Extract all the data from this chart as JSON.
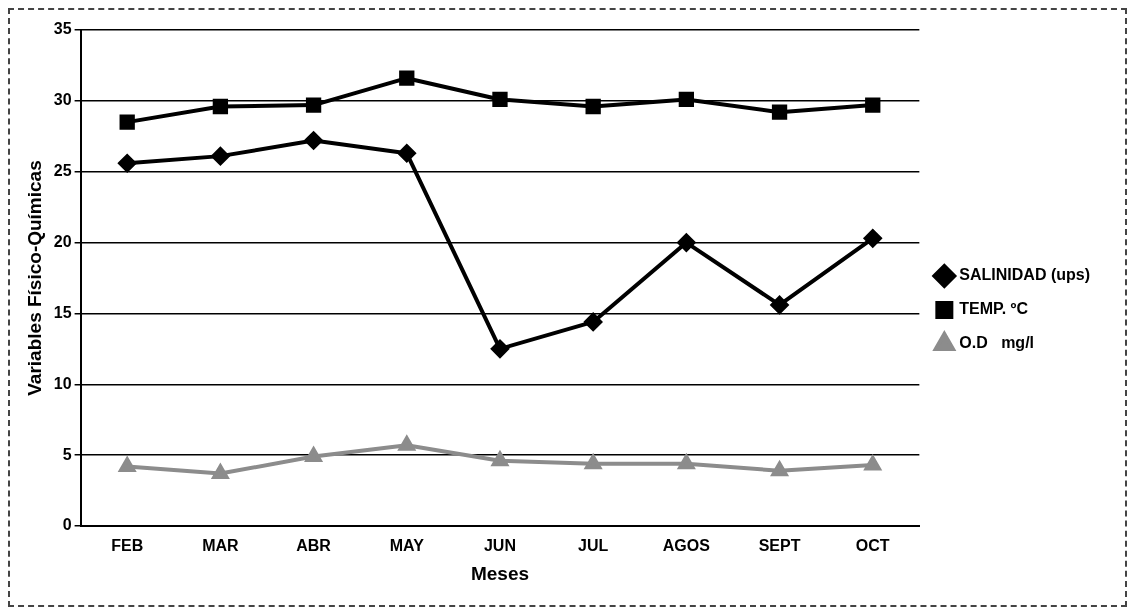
{
  "chart_data": {
    "type": "line",
    "xlabel": "Meses",
    "ylabel": "Variables Físico-Químicas",
    "categories": [
      "FEB",
      "MAR",
      "ABR",
      "MAY",
      "JUN",
      "JUL",
      "AGOS",
      "SEPT",
      "OCT"
    ],
    "series": [
      {
        "name": "SALINIDAD (ups)",
        "color": "#000000",
        "marker": "diamond",
        "values": [
          25.6,
          26.1,
          27.2,
          26.3,
          12.5,
          14.4,
          20.0,
          15.6,
          20.3
        ]
      },
      {
        "name": "TEMP. ºC",
        "color": "#000000",
        "marker": "square",
        "values": [
          28.5,
          29.6,
          29.7,
          31.6,
          30.1,
          29.6,
          30.1,
          29.2,
          29.7
        ]
      },
      {
        "name": "O.D   mg/l",
        "color": "#8c8c8c",
        "marker": "triangle",
        "values": [
          4.2,
          3.7,
          4.9,
          5.7,
          4.6,
          4.4,
          4.4,
          3.9,
          4.3
        ]
      }
    ],
    "ylim": [
      0,
      35
    ],
    "yticks": [
      0,
      5,
      10,
      15,
      20,
      25,
      30,
      35
    ],
    "grid": "y",
    "legend": "right"
  }
}
